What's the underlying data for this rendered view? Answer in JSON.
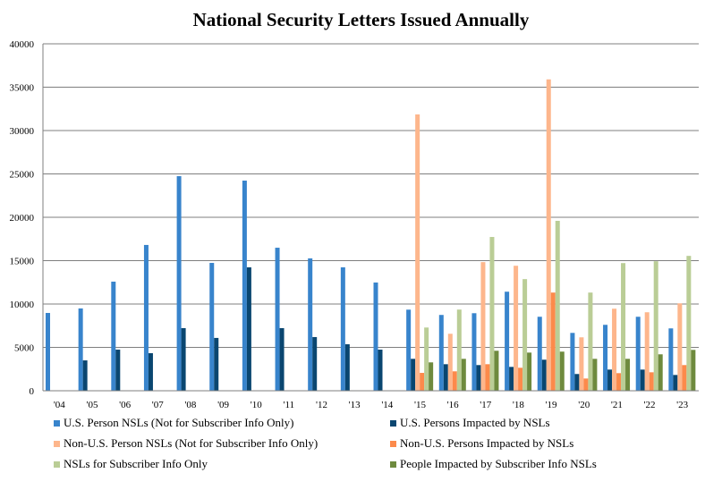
{
  "chart_data": {
    "type": "bar",
    "title": "National Security Letters Issued Annually",
    "xlabel": "",
    "ylabel": "",
    "ylim": [
      0,
      40000
    ],
    "yticks": [
      0,
      5000,
      10000,
      15000,
      20000,
      25000,
      30000,
      35000,
      40000
    ],
    "grid": true,
    "legend_position": "bottom",
    "categories": [
      "'04",
      "'05",
      "'06",
      "'07",
      "'08",
      "'09",
      "'10",
      "'11",
      "'12",
      "'13",
      "'14",
      "'15",
      "'16",
      "'17",
      "'18",
      "'19",
      "'20",
      "'21",
      "'22",
      "'23"
    ],
    "series": [
      {
        "name": "U.S. Person NSLs (Not for Subscriber Info Only)",
        "color": "#3884CC",
        "values": [
          8970,
          9490,
          12580,
          16810,
          24740,
          14740,
          24230,
          16490,
          15260,
          14230,
          12480,
          9350,
          8740,
          8940,
          11420,
          8530,
          6670,
          7600,
          8530,
          7190
        ]
      },
      {
        "name": "U.S. Persons Impacted by NSLs",
        "color": "#0A4670",
        "values": [
          null,
          3500,
          4740,
          4330,
          7220,
          6090,
          14230,
          7220,
          6190,
          5360,
          4740,
          3680,
          3060,
          2960,
          2750,
          3580,
          1930,
          2440,
          2440,
          1820
        ]
      },
      {
        "name": "Non-U.S. Person NSLs (Not for Subscriber Info Only)",
        "color": "#FDB68C",
        "values": [
          null,
          null,
          null,
          null,
          null,
          null,
          null,
          null,
          null,
          null,
          null,
          31860,
          6570,
          14830,
          14410,
          35900,
          6160,
          9460,
          9050,
          10080
        ]
      },
      {
        "name": "Non-U.S. Persons Impacted by NSLs",
        "color": "#FC8A4B",
        "values": [
          null,
          null,
          null,
          null,
          null,
          null,
          null,
          null,
          null,
          null,
          null,
          2060,
          2240,
          3060,
          2650,
          11320,
          1410,
          2030,
          2130,
          2960
        ]
      },
      {
        "name": "NSLs for Subscriber Info Only",
        "color": "#BACD96",
        "values": [
          null,
          null,
          null,
          null,
          null,
          null,
          null,
          null,
          null,
          null,
          null,
          7290,
          9360,
          17730,
          12870,
          19590,
          11320,
          14720,
          14930,
          15550
        ]
      },
      {
        "name": "People Impacted by Subscriber Info NSLs",
        "color": "#6E8A3E",
        "values": [
          null,
          null,
          null,
          null,
          null,
          null,
          null,
          null,
          null,
          null,
          null,
          3270,
          3680,
          4610,
          4400,
          4510,
          3680,
          3680,
          4200,
          4710
        ]
      }
    ],
    "legend_order": [
      0,
      1,
      2,
      3,
      4,
      5
    ]
  }
}
